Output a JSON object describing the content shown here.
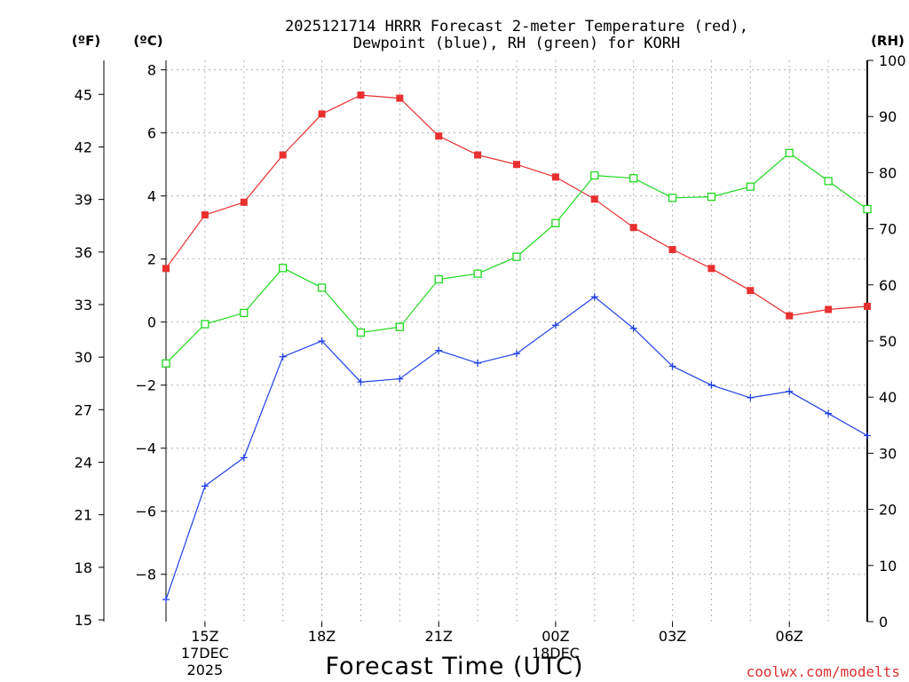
{
  "chart_data": {
    "type": "line",
    "title_line1": "2025121714 HRRR Forecast 2-meter Temperature (red),",
    "title_line2": "Dewpoint (blue), RH (green) for KORH",
    "unit_f": "(ºF)",
    "unit_c": "(ºC)",
    "unit_rh": "(RH)",
    "xlabel": "Forecast Time (UTC)",
    "credit": "coolwx.com/modelts",
    "x_hours": [
      14,
      15,
      16,
      17,
      18,
      19,
      20,
      21,
      22,
      23,
      24,
      25,
      26,
      27,
      28,
      29,
      30,
      31,
      32
    ],
    "xlim": [
      14,
      32
    ],
    "ylim_c": [
      -9.5,
      8.3
    ],
    "ylim_rh": [
      0,
      100
    ],
    "x_ticks": [
      {
        "hour": 15,
        "label": "15Z",
        "sub1": "17DEC",
        "sub2": "2025"
      },
      {
        "hour": 18,
        "label": "18Z",
        "sub1": "",
        "sub2": ""
      },
      {
        "hour": 21,
        "label": "21Z",
        "sub1": "",
        "sub2": ""
      },
      {
        "hour": 24,
        "label": "00Z",
        "sub1": "18DEC",
        "sub2": ""
      },
      {
        "hour": 27,
        "label": "03Z",
        "sub1": "",
        "sub2": ""
      },
      {
        "hour": 30,
        "label": "06Z",
        "sub1": "",
        "sub2": ""
      }
    ],
    "y_ticks_c": [
      {
        "v": 8,
        "label": "8"
      },
      {
        "v": 6,
        "label": "6"
      },
      {
        "v": 4,
        "label": "4"
      },
      {
        "v": 2,
        "label": "2"
      },
      {
        "v": 0,
        "label": "0"
      },
      {
        "v": -2,
        "label": "−2"
      },
      {
        "v": -4,
        "label": "−4"
      },
      {
        "v": -6,
        "label": "−6"
      },
      {
        "v": -8,
        "label": "−8"
      }
    ],
    "y_ticks_f": [
      {
        "v": 45,
        "label": "45"
      },
      {
        "v": 42,
        "label": "42"
      },
      {
        "v": 39,
        "label": "39"
      },
      {
        "v": 36,
        "label": "36"
      },
      {
        "v": 33,
        "label": "33"
      },
      {
        "v": 30,
        "label": "30"
      },
      {
        "v": 27,
        "label": "27"
      },
      {
        "v": 24,
        "label": "24"
      },
      {
        "v": 21,
        "label": "21"
      },
      {
        "v": 18,
        "label": "18"
      },
      {
        "v": 15,
        "label": "15"
      }
    ],
    "y_ticks_rh": [
      {
        "v": 100,
        "label": "100"
      },
      {
        "v": 90,
        "label": "90"
      },
      {
        "v": 80,
        "label": "80"
      },
      {
        "v": 70,
        "label": "70"
      },
      {
        "v": 60,
        "label": "60"
      },
      {
        "v": 50,
        "label": "50"
      },
      {
        "v": 40,
        "label": "40"
      },
      {
        "v": 30,
        "label": "30"
      },
      {
        "v": 20,
        "label": "20"
      },
      {
        "v": 10,
        "label": "10"
      },
      {
        "v": 0,
        "label": "0"
      }
    ],
    "series": [
      {
        "name": "2-meter Temperature",
        "axis": "c",
        "color": "#e83030",
        "marker": "filled-square",
        "values": [
          1.7,
          3.4,
          3.8,
          5.3,
          6.6,
          7.2,
          7.1,
          5.9,
          5.3,
          5.0,
          4.6,
          3.9,
          3.0,
          2.3,
          1.7,
          1.0,
          0.2,
          0.4,
          0.5
        ]
      },
      {
        "name": "Dewpoint",
        "axis": "c",
        "color": "#2040e8",
        "marker": "plus",
        "values": [
          -8.8,
          -5.2,
          -4.3,
          -1.1,
          -0.6,
          -1.9,
          -1.8,
          -0.9,
          -1.3,
          -1.0,
          -0.1,
          0.8,
          -0.2,
          -1.4,
          -2.0,
          -2.4,
          -2.2,
          -2.9,
          -3.6
        ]
      },
      {
        "name": "RH",
        "axis": "rh",
        "color": "#20d820",
        "marker": "open-square",
        "values": [
          46,
          53,
          55,
          63,
          59.5,
          51.5,
          52.5,
          61,
          62,
          65,
          71,
          79.5,
          79,
          75.5,
          75.7,
          77.5,
          83.5,
          78.5,
          73.5
        ]
      }
    ]
  }
}
